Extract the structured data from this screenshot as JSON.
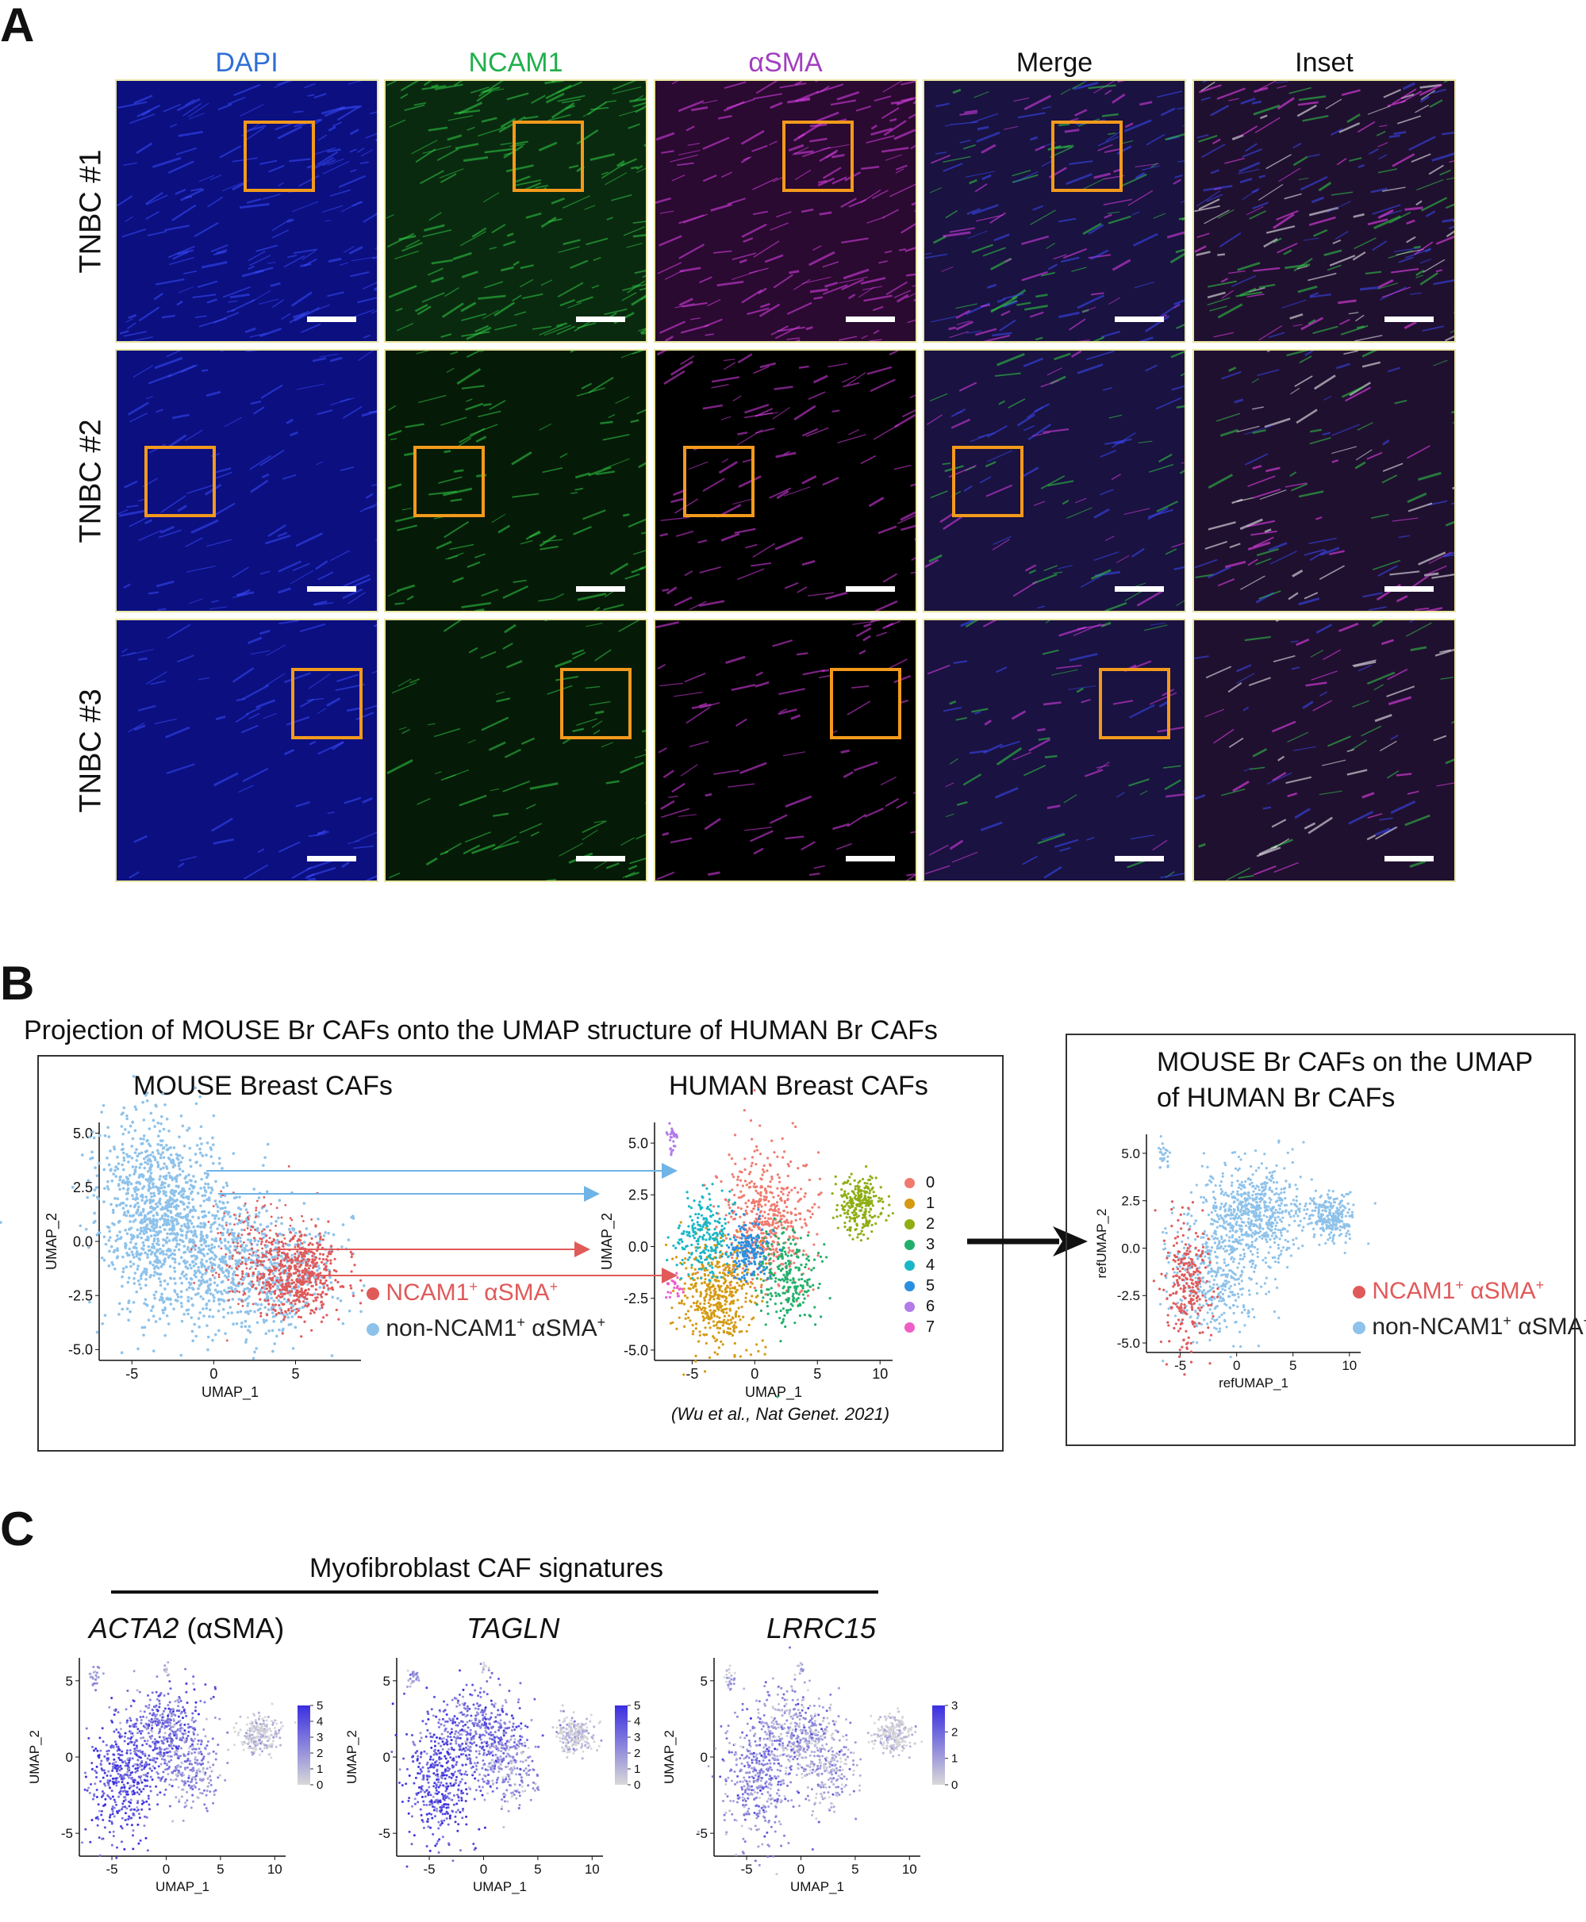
{
  "panel_a": {
    "letter": "A",
    "columns": [
      {
        "label": "DAPI",
        "color": "#2f6fd6"
      },
      {
        "label": "NCAM1",
        "color": "#1fb04a"
      },
      {
        "label": "αSMA",
        "color": "#a23fbf"
      },
      {
        "label": "Merge",
        "color": "#111111"
      },
      {
        "label": "Inset",
        "color": "#111111"
      }
    ],
    "rows": [
      "TNBC #1",
      "TNBC #2",
      "TNBC #3"
    ],
    "roi_color": "#f39a1c"
  },
  "panel_b": {
    "letter": "B",
    "heading": "Projection of MOUSE Br CAFs onto the UMAP structure of HUMAN Br CAFs",
    "mouse_title": "MOUSE Breast CAFs",
    "human_title": "HUMAN Breast CAFs",
    "citation": "(Wu et al., Nat Genet. 2021)",
    "right_title_line1": "MOUSE Br CAFs on the UMAP",
    "right_title_line2": "of HUMAN Br CAFs",
    "legend": {
      "pos_label": "NCAM1",
      "pos_label2": "αSMA",
      "neg_label": "non-NCAM1",
      "neg_label2": "αSMA",
      "plus": "+",
      "pos_color": "#e05a5a",
      "neg_color": "#8ec2ea"
    },
    "clusters": [
      "0",
      "1",
      "2",
      "3",
      "4",
      "5",
      "6",
      "7"
    ],
    "cluster_colors": [
      "#f07a6e",
      "#d59a12",
      "#8fae13",
      "#21b06b",
      "#19b6c7",
      "#2a8fe0",
      "#b27be8",
      "#ee5ec6"
    ]
  },
  "panel_c": {
    "letter": "C",
    "heading": "Myofibroblast CAF signatures",
    "genes": [
      {
        "gene": "ACTA2",
        "suffix": " (αSMA)",
        "scale": [
          "5",
          "4",
          "3",
          "2",
          "1",
          "0"
        ]
      },
      {
        "gene": "TAGLN",
        "suffix": "",
        "scale": [
          "5",
          "4",
          "3",
          "2",
          "1",
          "0"
        ]
      },
      {
        "gene": "LRRC15",
        "suffix": "",
        "scale": [
          "3",
          "2",
          "1",
          "0"
        ]
      }
    ],
    "high_color": "#3a2ee0",
    "low_color": "#d8d8d8"
  },
  "chart_data": [
    {
      "type": "scatter",
      "title": "MOUSE Breast CAFs",
      "xlabel": "UMAP_1",
      "ylabel": "UMAP_2",
      "xticks": [
        "-5",
        "0",
        "5"
      ],
      "yticks": [
        "5.0",
        "2.5",
        "0.0",
        "-2.5",
        "-5.0"
      ],
      "xlim": [
        -7,
        9
      ],
      "ylim": [
        -5.5,
        5.5
      ],
      "series": [
        {
          "name": "NCAM1+ αSMA+",
          "color": "#e05a5a"
        },
        {
          "name": "non-NCAM1+ αSMA+",
          "color": "#8ec2ea"
        }
      ]
    },
    {
      "type": "scatter",
      "title": "HUMAN Breast CAFs",
      "xlabel": "UMAP_1",
      "ylabel": "UMAP_2",
      "xticks": [
        "-5",
        "0",
        "5",
        "10"
      ],
      "yticks": [
        "5.0",
        "2.5",
        "0.0",
        "-2.5",
        "-5.0"
      ],
      "xlim": [
        -8,
        11
      ],
      "ylim": [
        -5.5,
        6
      ],
      "series_names": [
        "0",
        "1",
        "2",
        "3",
        "4",
        "5",
        "6",
        "7"
      ]
    },
    {
      "type": "scatter",
      "title": "MOUSE Br CAFs on the UMAP of HUMAN Br CAFs",
      "xlabel": "refUMAP_1",
      "ylabel": "refUMAP_2",
      "xticks": [
        "-5",
        "0",
        "5",
        "10"
      ],
      "yticks": [
        "5.0",
        "2.5",
        "0.0",
        "-2.5",
        "-5.0"
      ],
      "xlim": [
        -8,
        11
      ],
      "ylim": [
        -5.5,
        6
      ]
    },
    {
      "type": "scatter",
      "title": "ACTA2 (αSMA)",
      "xlabel": "UMAP_1",
      "ylabel": "UMAP_2",
      "xticks": [
        "-5",
        "0",
        "5",
        "10"
      ],
      "yticks": [
        "5",
        "0",
        "-5"
      ],
      "colorbar": [
        0,
        5
      ]
    },
    {
      "type": "scatter",
      "title": "TAGLN",
      "xlabel": "UMAP_1",
      "ylabel": "UMAP_2",
      "xticks": [
        "-5",
        "0",
        "5",
        "10"
      ],
      "yticks": [
        "5",
        "0",
        "-5"
      ],
      "colorbar": [
        0,
        5
      ]
    },
    {
      "type": "scatter",
      "title": "LRRC15",
      "xlabel": "UMAP_1",
      "ylabel": "UMAP_2",
      "xticks": [
        "-5",
        "0",
        "5",
        "10"
      ],
      "yticks": [
        "5",
        "0",
        "-5"
      ],
      "colorbar": [
        0,
        3
      ]
    }
  ]
}
